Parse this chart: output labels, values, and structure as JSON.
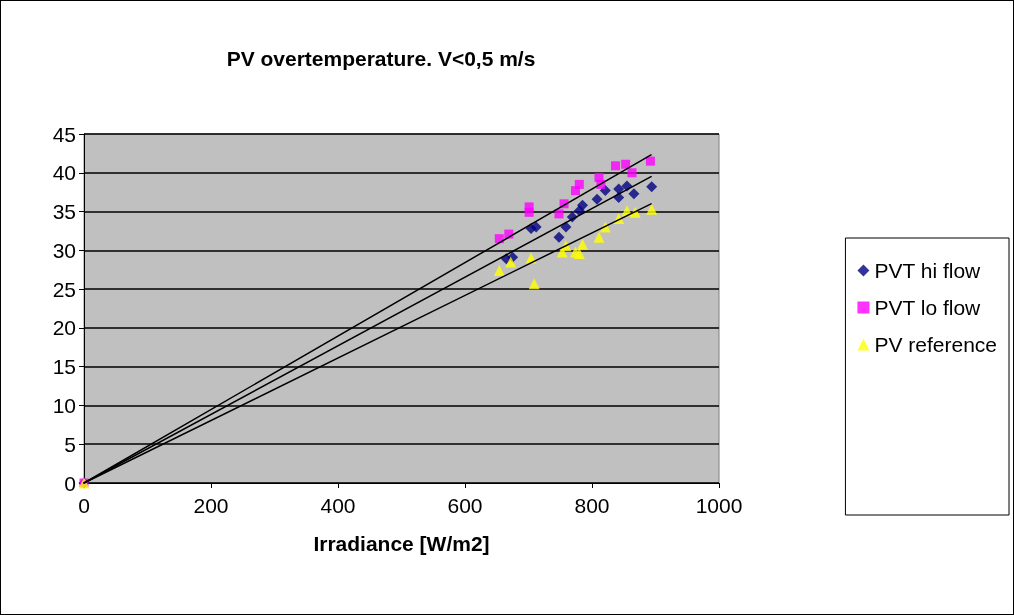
{
  "chart_data": {
    "type": "scatter",
    "title": "PV overtemperature. V<0,5 m/s",
    "xlabel": "Irradiance [W/m2]",
    "xlim": [
      0,
      1000
    ],
    "xticks": [
      0,
      200,
      400,
      600,
      800,
      1000
    ],
    "ylim": [
      0,
      45
    ],
    "yticks": [
      0,
      5,
      10,
      15,
      20,
      25,
      30,
      35,
      40,
      45
    ],
    "grid": "y",
    "legend": "right",
    "series": [
      {
        "name": "PVT hi flow",
        "color": "#000080",
        "marker": "diamond",
        "x": [
          0,
          665,
          675,
          704,
          712,
          748,
          759,
          769,
          780,
          785,
          808,
          821,
          842,
          842,
          855,
          866,
          894
        ],
        "values": [
          0,
          28.9,
          29.1,
          32.8,
          33.0,
          31.7,
          33.0,
          34.3,
          35.1,
          35.8,
          36.6,
          37.7,
          36.8,
          37.9,
          38.3,
          37.3,
          38.2
        ]
      },
      {
        "name": "PVT lo flow",
        "color": "#ff00ff",
        "marker": "square",
        "x": [
          0,
          654,
          669,
          701,
          701,
          748,
          756,
          774,
          780,
          811,
          814,
          837,
          853,
          863,
          892
        ],
        "values": [
          0,
          31.5,
          32.1,
          34.9,
          35.6,
          34.7,
          36.0,
          37.7,
          38.5,
          39.4,
          38.5,
          40.9,
          41.1,
          40.0,
          41.5
        ]
      },
      {
        "name": "PV reference",
        "color": "#ffff00",
        "marker": "triangle",
        "x": [
          0,
          654,
          672,
          704,
          709,
          753,
          759,
          774,
          780,
          785,
          811,
          821,
          842,
          855,
          868,
          894
        ],
        "values": [
          0,
          27.4,
          28.5,
          29.0,
          25.7,
          29.8,
          30.6,
          29.8,
          29.6,
          30.8,
          31.7,
          33.0,
          34.1,
          35.1,
          34.9,
          35.3
        ]
      },
      {
        "type": "line",
        "color": "#000000",
        "marker": "none",
        "x": [
          0,
          893
        ],
        "values": [
          0,
          39.5
        ]
      },
      {
        "type": "line",
        "color": "#000000",
        "marker": "none",
        "x": [
          0,
          893
        ],
        "values": [
          0,
          42.3
        ]
      },
      {
        "type": "line",
        "color": "#000000",
        "marker": "none",
        "x": [
          0,
          893
        ],
        "values": [
          0,
          36.0
        ]
      }
    ]
  }
}
